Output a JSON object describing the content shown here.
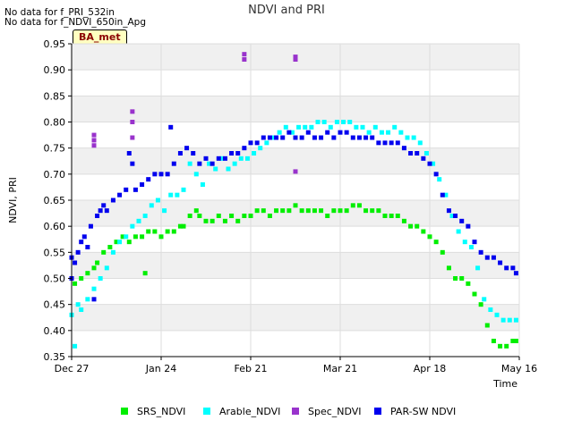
{
  "notes": [
    "No data for f_PRI_532in",
    "No data for f_NDVI_650in_Apg"
  ],
  "site_label": "BA_met",
  "chart_data": {
    "type": "scatter",
    "title": "NDVI and PRI",
    "xlabel": "Time",
    "ylabel": "NDVI, PRI",
    "xlim": [
      0,
      140
    ],
    "ylim": [
      0.35,
      0.95
    ],
    "x_unit": "days since Dec 27",
    "xticks": [
      {
        "x": 0,
        "label": "Dec 27"
      },
      {
        "x": 28,
        "label": "Jan 24"
      },
      {
        "x": 56,
        "label": "Feb 21"
      },
      {
        "x": 84,
        "label": "Mar 21"
      },
      {
        "x": 112,
        "label": "Apr 18"
      },
      {
        "x": 140,
        "label": "May 16"
      }
    ],
    "yticks": [
      0.35,
      0.4,
      0.45,
      0.5,
      0.55,
      0.6,
      0.65,
      0.7,
      0.75,
      0.8,
      0.85,
      0.9,
      0.95
    ],
    "grid": true,
    "legend_position": "bottom",
    "series": [
      {
        "name": "SRS_NDVI",
        "color": "#00ee00",
        "points": [
          [
            1,
            0.49
          ],
          [
            3,
            0.5
          ],
          [
            5,
            0.51
          ],
          [
            7,
            0.52
          ],
          [
            8,
            0.53
          ],
          [
            10,
            0.55
          ],
          [
            12,
            0.56
          ],
          [
            14,
            0.57
          ],
          [
            16,
            0.58
          ],
          [
            18,
            0.57
          ],
          [
            20,
            0.58
          ],
          [
            22,
            0.58
          ],
          [
            23,
            0.51
          ],
          [
            24,
            0.59
          ],
          [
            26,
            0.59
          ],
          [
            28,
            0.58
          ],
          [
            30,
            0.59
          ],
          [
            32,
            0.59
          ],
          [
            34,
            0.6
          ],
          [
            35,
            0.6
          ],
          [
            37,
            0.62
          ],
          [
            39,
            0.63
          ],
          [
            40,
            0.62
          ],
          [
            42,
            0.61
          ],
          [
            44,
            0.61
          ],
          [
            46,
            0.62
          ],
          [
            48,
            0.61
          ],
          [
            50,
            0.62
          ],
          [
            52,
            0.61
          ],
          [
            54,
            0.62
          ],
          [
            56,
            0.62
          ],
          [
            58,
            0.63
          ],
          [
            60,
            0.63
          ],
          [
            62,
            0.62
          ],
          [
            64,
            0.63
          ],
          [
            66,
            0.63
          ],
          [
            68,
            0.63
          ],
          [
            70,
            0.64
          ],
          [
            72,
            0.63
          ],
          [
            74,
            0.63
          ],
          [
            76,
            0.63
          ],
          [
            78,
            0.63
          ],
          [
            80,
            0.62
          ],
          [
            82,
            0.63
          ],
          [
            84,
            0.63
          ],
          [
            86,
            0.63
          ],
          [
            88,
            0.64
          ],
          [
            90,
            0.64
          ],
          [
            92,
            0.63
          ],
          [
            94,
            0.63
          ],
          [
            96,
            0.63
          ],
          [
            98,
            0.62
          ],
          [
            100,
            0.62
          ],
          [
            102,
            0.62
          ],
          [
            104,
            0.61
          ],
          [
            106,
            0.6
          ],
          [
            108,
            0.6
          ],
          [
            110,
            0.59
          ],
          [
            112,
            0.58
          ],
          [
            114,
            0.57
          ],
          [
            116,
            0.55
          ],
          [
            118,
            0.52
          ],
          [
            120,
            0.5
          ],
          [
            122,
            0.5
          ],
          [
            124,
            0.49
          ],
          [
            126,
            0.47
          ],
          [
            128,
            0.45
          ],
          [
            130,
            0.41
          ],
          [
            132,
            0.38
          ],
          [
            134,
            0.37
          ],
          [
            136,
            0.37
          ],
          [
            138,
            0.38
          ],
          [
            139,
            0.38
          ]
        ]
      },
      {
        "name": "Arable_NDVI",
        "color": "#00ffff",
        "points": [
          [
            0,
            0.43
          ],
          [
            1,
            0.37
          ],
          [
            2,
            0.45
          ],
          [
            3,
            0.44
          ],
          [
            5,
            0.46
          ],
          [
            7,
            0.48
          ],
          [
            9,
            0.5
          ],
          [
            11,
            0.52
          ],
          [
            13,
            0.55
          ],
          [
            15,
            0.57
          ],
          [
            17,
            0.58
          ],
          [
            19,
            0.6
          ],
          [
            21,
            0.61
          ],
          [
            23,
            0.62
          ],
          [
            25,
            0.64
          ],
          [
            27,
            0.65
          ],
          [
            29,
            0.63
          ],
          [
            31,
            0.66
          ],
          [
            33,
            0.66
          ],
          [
            35,
            0.67
          ],
          [
            37,
            0.72
          ],
          [
            39,
            0.7
          ],
          [
            41,
            0.68
          ],
          [
            43,
            0.72
          ],
          [
            45,
            0.71
          ],
          [
            47,
            0.73
          ],
          [
            49,
            0.71
          ],
          [
            51,
            0.72
          ],
          [
            53,
            0.73
          ],
          [
            55,
            0.73
          ],
          [
            57,
            0.74
          ],
          [
            59,
            0.75
          ],
          [
            61,
            0.76
          ],
          [
            63,
            0.77
          ],
          [
            65,
            0.78
          ],
          [
            67,
            0.79
          ],
          [
            69,
            0.78
          ],
          [
            71,
            0.79
          ],
          [
            73,
            0.79
          ],
          [
            75,
            0.79
          ],
          [
            77,
            0.8
          ],
          [
            79,
            0.8
          ],
          [
            81,
            0.79
          ],
          [
            83,
            0.8
          ],
          [
            85,
            0.8
          ],
          [
            87,
            0.8
          ],
          [
            89,
            0.79
          ],
          [
            91,
            0.79
          ],
          [
            93,
            0.78
          ],
          [
            95,
            0.79
          ],
          [
            97,
            0.78
          ],
          [
            99,
            0.78
          ],
          [
            101,
            0.79
          ],
          [
            103,
            0.78
          ],
          [
            105,
            0.77
          ],
          [
            107,
            0.77
          ],
          [
            109,
            0.76
          ],
          [
            111,
            0.74
          ],
          [
            113,
            0.72
          ],
          [
            115,
            0.69
          ],
          [
            117,
            0.66
          ],
          [
            119,
            0.62
          ],
          [
            121,
            0.59
          ],
          [
            123,
            0.57
          ],
          [
            125,
            0.56
          ],
          [
            127,
            0.52
          ],
          [
            129,
            0.46
          ],
          [
            131,
            0.44
          ],
          [
            133,
            0.43
          ],
          [
            135,
            0.42
          ],
          [
            137,
            0.42
          ],
          [
            139,
            0.42
          ]
        ]
      },
      {
        "name": "Spec_NDVI",
        "color": "#9933cc",
        "points": [
          [
            7,
            0.775
          ],
          [
            7,
            0.765
          ],
          [
            7,
            0.755
          ],
          [
            19,
            0.82
          ],
          [
            19,
            0.8
          ],
          [
            19,
            0.77
          ],
          [
            54,
            0.93
          ],
          [
            54,
            0.92
          ],
          [
            70,
            0.925
          ],
          [
            70,
            0.92
          ],
          [
            70,
            0.705
          ]
        ]
      },
      {
        "name": "PAR-SW NDVI",
        "color": "#0000ee",
        "points": [
          [
            0,
            0.54
          ],
          [
            0,
            0.5
          ],
          [
            1,
            0.53
          ],
          [
            2,
            0.55
          ],
          [
            3,
            0.57
          ],
          [
            4,
            0.58
          ],
          [
            5,
            0.56
          ],
          [
            6,
            0.6
          ],
          [
            7,
            0.46
          ],
          [
            8,
            0.62
          ],
          [
            9,
            0.63
          ],
          [
            10,
            0.64
          ],
          [
            11,
            0.63
          ],
          [
            13,
            0.65
          ],
          [
            15,
            0.66
          ],
          [
            17,
            0.67
          ],
          [
            18,
            0.74
          ],
          [
            19,
            0.72
          ],
          [
            20,
            0.67
          ],
          [
            22,
            0.68
          ],
          [
            24,
            0.69
          ],
          [
            26,
            0.7
          ],
          [
            28,
            0.7
          ],
          [
            30,
            0.7
          ],
          [
            31,
            0.79
          ],
          [
            32,
            0.72
          ],
          [
            34,
            0.74
          ],
          [
            36,
            0.75
          ],
          [
            38,
            0.74
          ],
          [
            40,
            0.72
          ],
          [
            42,
            0.73
          ],
          [
            44,
            0.72
          ],
          [
            46,
            0.73
          ],
          [
            48,
            0.73
          ],
          [
            50,
            0.74
          ],
          [
            52,
            0.74
          ],
          [
            54,
            0.75
          ],
          [
            56,
            0.76
          ],
          [
            58,
            0.76
          ],
          [
            60,
            0.77
          ],
          [
            62,
            0.77
          ],
          [
            64,
            0.77
          ],
          [
            66,
            0.77
          ],
          [
            68,
            0.78
          ],
          [
            70,
            0.77
          ],
          [
            72,
            0.77
          ],
          [
            74,
            0.78
          ],
          [
            76,
            0.77
          ],
          [
            78,
            0.77
          ],
          [
            80,
            0.78
          ],
          [
            82,
            0.77
          ],
          [
            84,
            0.78
          ],
          [
            86,
            0.78
          ],
          [
            88,
            0.77
          ],
          [
            90,
            0.77
          ],
          [
            92,
            0.77
          ],
          [
            94,
            0.77
          ],
          [
            96,
            0.76
          ],
          [
            98,
            0.76
          ],
          [
            100,
            0.76
          ],
          [
            102,
            0.76
          ],
          [
            104,
            0.75
          ],
          [
            106,
            0.74
          ],
          [
            108,
            0.74
          ],
          [
            110,
            0.73
          ],
          [
            112,
            0.72
          ],
          [
            114,
            0.7
          ],
          [
            116,
            0.66
          ],
          [
            118,
            0.63
          ],
          [
            120,
            0.62
          ],
          [
            122,
            0.61
          ],
          [
            124,
            0.6
          ],
          [
            126,
            0.57
          ],
          [
            128,
            0.55
          ],
          [
            130,
            0.54
          ],
          [
            132,
            0.54
          ],
          [
            134,
            0.53
          ],
          [
            136,
            0.52
          ],
          [
            138,
            0.52
          ],
          [
            139,
            0.51
          ]
        ]
      }
    ]
  }
}
